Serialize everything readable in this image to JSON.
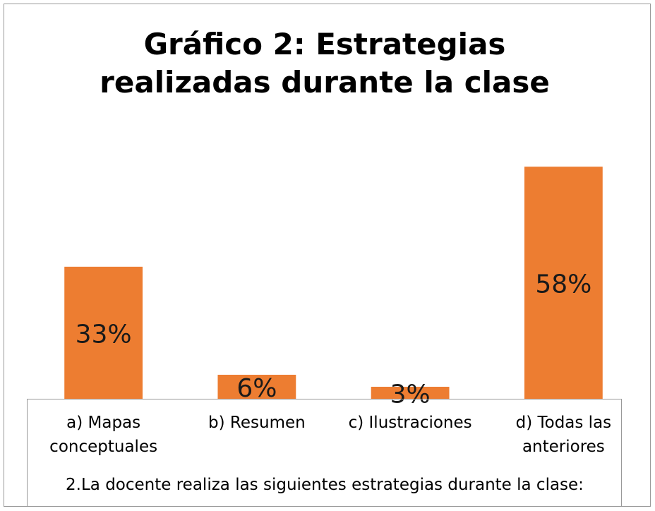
{
  "chart_data": {
    "type": "bar",
    "title": "Gráfico 2: Estrategias realizadas durante la clase",
    "x_label": "2.La docente realiza las siguientes  estrategias durante la clase:",
    "categories": [
      "a) Mapas conceptuales",
      "b) Resumen",
      "c) Ilustraciones",
      "d) Todas las anteriores"
    ],
    "values": [
      33,
      6,
      3,
      58
    ],
    "value_labels": [
      "33%",
      "6%",
      "3%",
      "58%"
    ],
    "color": "#ed7d31"
  }
}
